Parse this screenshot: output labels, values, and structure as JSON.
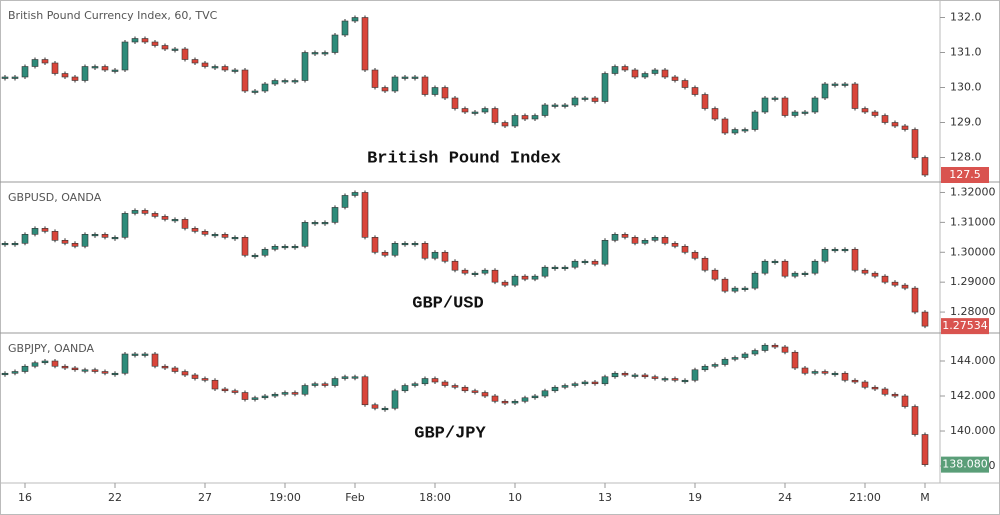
{
  "chart_data": [
    {
      "type": "candlestick",
      "title": "British Pound Currency Index, 60, TVC",
      "annotation": "British Pound Index",
      "up_color": "#2e8b7a",
      "down_color": "#d9453a",
      "last_label": "127.5",
      "last_label_color": "#d9534f",
      "ylim": [
        127.3,
        132.5
      ],
      "yticks": [
        {
          "value": 128,
          "label": "128.0"
        },
        {
          "value": 129,
          "label": "129.0"
        },
        {
          "value": 130,
          "label": "130.0"
        },
        {
          "value": 131,
          "label": "131.0"
        },
        {
          "value": 132,
          "label": "132.0"
        }
      ],
      "values": [
        130.3,
        130.3,
        130.6,
        130.8,
        130.7,
        130.4,
        130.3,
        130.2,
        130.6,
        130.6,
        130.5,
        130.5,
        131.3,
        131.4,
        131.3,
        131.2,
        131.1,
        131.1,
        130.8,
        130.7,
        130.6,
        130.6,
        130.5,
        130.5,
        129.9,
        129.9,
        130.1,
        130.2,
        130.2,
        130.2,
        131.0,
        131.0,
        131.0,
        131.5,
        131.9,
        132.0,
        130.5,
        130.0,
        129.9,
        130.3,
        130.3,
        130.3,
        129.8,
        130.0,
        129.7,
        129.4,
        129.3,
        129.3,
        129.4,
        129.0,
        128.9,
        129.2,
        129.1,
        129.2,
        129.5,
        129.5,
        129.5,
        129.7,
        129.7,
        129.6,
        130.4,
        130.6,
        130.5,
        130.3,
        130.4,
        130.5,
        130.3,
        130.2,
        130.0,
        129.8,
        129.4,
        129.1,
        128.7,
        128.8,
        128.8,
        129.3,
        129.7,
        129.7,
        129.2,
        129.3,
        129.3,
        129.7,
        130.1,
        130.1,
        130.1,
        129.4,
        129.3,
        129.2,
        129.0,
        128.9,
        128.8,
        128.0,
        127.5
      ]
    },
    {
      "type": "candlestick",
      "title": "GBPUSD, OANDA",
      "annotation": "GBP/USD",
      "up_color": "#2e8b7a",
      "down_color": "#d9453a",
      "last_label": "1.27534",
      "last_label_color": "#d9534f",
      "ylim": [
        1.273,
        1.3235
      ],
      "yticks": [
        {
          "value": 1.28,
          "label": "1.28000"
        },
        {
          "value": 1.29,
          "label": "1.29000"
        },
        {
          "value": 1.3,
          "label": "1.30000"
        },
        {
          "value": 1.31,
          "label": "1.31000"
        },
        {
          "value": 1.32,
          "label": "1.32000"
        }
      ],
      "values": [
        1.303,
        1.303,
        1.306,
        1.308,
        1.307,
        1.304,
        1.303,
        1.302,
        1.306,
        1.306,
        1.305,
        1.305,
        1.313,
        1.314,
        1.313,
        1.312,
        1.311,
        1.311,
        1.308,
        1.307,
        1.306,
        1.306,
        1.305,
        1.305,
        1.299,
        1.299,
        1.301,
        1.302,
        1.302,
        1.302,
        1.31,
        1.31,
        1.31,
        1.315,
        1.319,
        1.32,
        1.305,
        1.3,
        1.299,
        1.303,
        1.303,
        1.303,
        1.298,
        1.3,
        1.297,
        1.294,
        1.293,
        1.293,
        1.294,
        1.29,
        1.289,
        1.292,
        1.291,
        1.292,
        1.295,
        1.295,
        1.295,
        1.297,
        1.297,
        1.296,
        1.304,
        1.306,
        1.305,
        1.303,
        1.304,
        1.305,
        1.303,
        1.302,
        1.3,
        1.298,
        1.294,
        1.291,
        1.287,
        1.288,
        1.288,
        1.293,
        1.297,
        1.297,
        1.292,
        1.293,
        1.293,
        1.297,
        1.301,
        1.301,
        1.301,
        1.294,
        1.293,
        1.292,
        1.29,
        1.289,
        1.288,
        1.28,
        1.2753
      ]
    },
    {
      "type": "candlestick",
      "title": "GBPJPY, OANDA",
      "annotation": "GBP/JPY",
      "up_color": "#2e8b7a",
      "down_color": "#d9453a",
      "last_label": "138.080",
      "last_label_color": "#5a9e78",
      "ylim": [
        137.03,
        145.6
      ],
      "yticks": [
        {
          "value": 138,
          "label": "138.000"
        },
        {
          "value": 140,
          "label": "140.000"
        },
        {
          "value": 142,
          "label": "142.000"
        },
        {
          "value": 144,
          "label": "144.000"
        }
      ],
      "categories": [
        null,
        null,
        "16",
        null,
        null,
        null,
        null,
        null,
        null,
        null,
        null,
        "22",
        null,
        null,
        null,
        null,
        null,
        null,
        null,
        null,
        "27",
        null,
        null,
        null,
        null,
        null,
        null,
        null,
        "19:00",
        null,
        null,
        null,
        null,
        null,
        null,
        "Feb",
        null,
        null,
        null,
        null,
        null,
        null,
        null,
        "18:00",
        null,
        null,
        null,
        null,
        null,
        null,
        null,
        "10",
        null,
        null,
        null,
        null,
        null,
        null,
        null,
        null,
        "13",
        null,
        null,
        null,
        null,
        null,
        null,
        null,
        null,
        "19",
        null,
        null,
        null,
        null,
        null,
        null,
        null,
        null,
        "24",
        null,
        null,
        null,
        null,
        null,
        null,
        null,
        "21:00",
        null,
        null,
        null,
        null,
        null,
        "M"
      ],
      "values": [
        143.3,
        143.4,
        143.7,
        143.9,
        144.0,
        143.7,
        143.6,
        143.5,
        143.5,
        143.4,
        143.3,
        143.3,
        144.4,
        144.4,
        144.4,
        143.7,
        143.6,
        143.4,
        143.2,
        143.0,
        142.9,
        142.4,
        142.3,
        142.2,
        141.8,
        141.9,
        142.0,
        142.1,
        142.2,
        142.1,
        142.6,
        142.7,
        142.6,
        143.0,
        143.1,
        143.1,
        141.5,
        141.3,
        141.3,
        142.3,
        142.6,
        142.7,
        143.0,
        142.8,
        142.6,
        142.5,
        142.3,
        142.2,
        142.0,
        141.7,
        141.6,
        141.7,
        141.9,
        142.0,
        142.3,
        142.5,
        142.6,
        142.7,
        142.8,
        142.7,
        143.1,
        143.3,
        143.2,
        143.2,
        143.1,
        143.0,
        143.0,
        142.9,
        142.9,
        143.5,
        143.7,
        143.8,
        144.1,
        144.2,
        144.4,
        144.6,
        144.9,
        144.8,
        144.5,
        143.6,
        143.3,
        143.4,
        143.3,
        143.3,
        142.9,
        142.8,
        142.5,
        142.4,
        142.1,
        142.0,
        141.4,
        139.8,
        138.08
      ]
    }
  ]
}
